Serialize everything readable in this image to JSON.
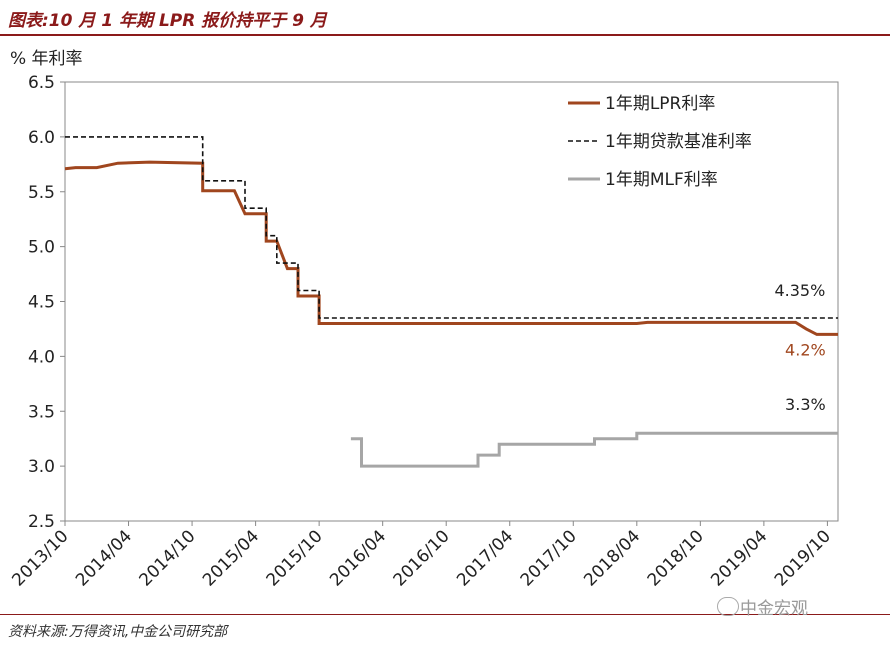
{
  "header": {
    "title": "图表:10 月 1 年期 LPR 报价持平于 9 月"
  },
  "footer": {
    "source": "资料来源:万得资讯,中金公司研究部",
    "watermark": "中金宏观"
  },
  "colors": {
    "lpr": "#a0461e",
    "benchmark": "#111111",
    "mlf": "#a6a6a6",
    "accent": "#8b1a1a"
  },
  "chart_data": {
    "type": "line",
    "title": "",
    "ylabel": "% 年利率",
    "xlabel": "",
    "ylim": [
      2.5,
      6.5
    ],
    "yticks": [
      "2.5",
      "3.0",
      "3.5",
      "4.0",
      "4.5",
      "5.0",
      "5.5",
      "6.0",
      "6.5"
    ],
    "xlim": [
      "2013-10",
      "2019-11"
    ],
    "xticks": [
      "2013/10",
      "2014/04",
      "2014/10",
      "2015/04",
      "2015/10",
      "2016/04",
      "2016/10",
      "2017/04",
      "2017/10",
      "2018/04",
      "2018/10",
      "2019/04",
      "2019/10"
    ],
    "grid": false,
    "legend": "top-right",
    "series": [
      {
        "name": "1年期LPR利率",
        "style": "solid",
        "points": [
          [
            "2013-10",
            5.71
          ],
          [
            "2013-11",
            5.72
          ],
          [
            "2014-01",
            5.72
          ],
          [
            "2014-03",
            5.76
          ],
          [
            "2014-06",
            5.77
          ],
          [
            "2014-11",
            5.76
          ],
          [
            "2014-11",
            5.51
          ],
          [
            "2015-02",
            5.51
          ],
          [
            "2015-03",
            5.3
          ],
          [
            "2015-05",
            5.3
          ],
          [
            "2015-05",
            5.05
          ],
          [
            "2015-06",
            5.05
          ],
          [
            "2015-07",
            4.8
          ],
          [
            "2015-08",
            4.8
          ],
          [
            "2015-08",
            4.55
          ],
          [
            "2015-10",
            4.55
          ],
          [
            "2015-10",
            4.3
          ],
          [
            "2018-04",
            4.3
          ],
          [
            "2018-05",
            4.31
          ],
          [
            "2018-10",
            4.31
          ],
          [
            "2019-01",
            4.31
          ],
          [
            "2019-07",
            4.31
          ],
          [
            "2019-08",
            4.25
          ],
          [
            "2019-09",
            4.2
          ],
          [
            "2019-11",
            4.2
          ]
        ]
      },
      {
        "name": "1年期贷款基准利率",
        "style": "dashed",
        "points": [
          [
            "2013-10",
            6.0
          ],
          [
            "2014-11",
            6.0
          ],
          [
            "2014-11",
            5.6
          ],
          [
            "2015-03",
            5.6
          ],
          [
            "2015-03",
            5.35
          ],
          [
            "2015-05",
            5.35
          ],
          [
            "2015-05",
            5.1
          ],
          [
            "2015-06",
            5.1
          ],
          [
            "2015-06",
            4.85
          ],
          [
            "2015-08",
            4.85
          ],
          [
            "2015-08",
            4.6
          ],
          [
            "2015-10",
            4.6
          ],
          [
            "2015-10",
            4.35
          ],
          [
            "2019-11",
            4.35
          ]
        ]
      },
      {
        "name": "1年期MLF利率",
        "style": "solid",
        "points": [
          [
            "2016-01",
            3.25
          ],
          [
            "2016-02",
            3.25
          ],
          [
            "2016-02",
            3.0
          ],
          [
            "2017-01",
            3.0
          ],
          [
            "2017-01",
            3.1
          ],
          [
            "2017-03",
            3.1
          ],
          [
            "2017-03",
            3.2
          ],
          [
            "2017-12",
            3.2
          ],
          [
            "2017-12",
            3.25
          ],
          [
            "2018-04",
            3.25
          ],
          [
            "2018-04",
            3.3
          ],
          [
            "2019-11",
            3.3
          ]
        ]
      }
    ],
    "annotations": [
      {
        "text": "4.35%",
        "x": "2019-05",
        "y": 4.55,
        "color": "#222222"
      },
      {
        "text": "4.2%",
        "x": "2019-06",
        "y": 4.01,
        "color": "#a0461e"
      },
      {
        "text": "3.3%",
        "x": "2019-06",
        "y": 3.51,
        "color": "#222222"
      }
    ]
  }
}
